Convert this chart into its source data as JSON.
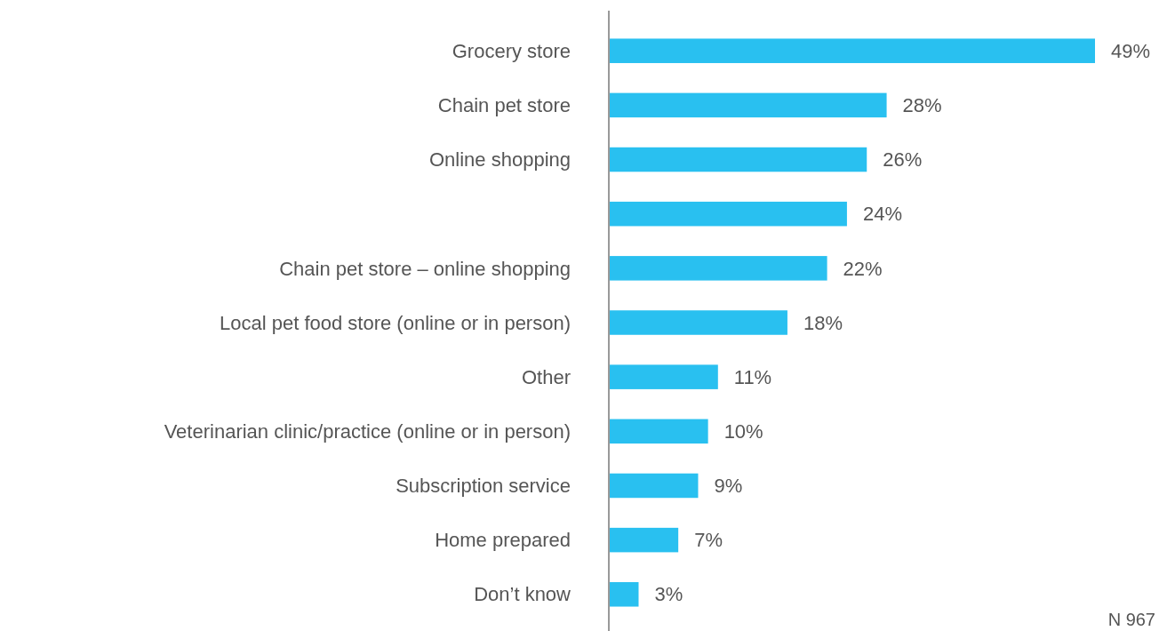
{
  "chart_data": {
    "type": "bar",
    "orientation": "horizontal",
    "categories": [
      "Grocery store",
      "Chain pet store",
      "Online shopping",
      null,
      "Chain pet store – online shopping",
      "Local pet food store (online or in person)",
      "Other",
      "Veterinarian clinic/practice (online or in person)",
      "Subscription service",
      "Home prepared",
      "Don’t know"
    ],
    "values": [
      49,
      28,
      26,
      24,
      22,
      18,
      11,
      10,
      9,
      7,
      3
    ],
    "value_labels": [
      "49%",
      "28%",
      "26%",
      "24%",
      "22%",
      "18%",
      "11%",
      "10%",
      "9%",
      "7%",
      "3%"
    ],
    "color": "#29c0f0",
    "annotations": [
      "N 967"
    ]
  }
}
